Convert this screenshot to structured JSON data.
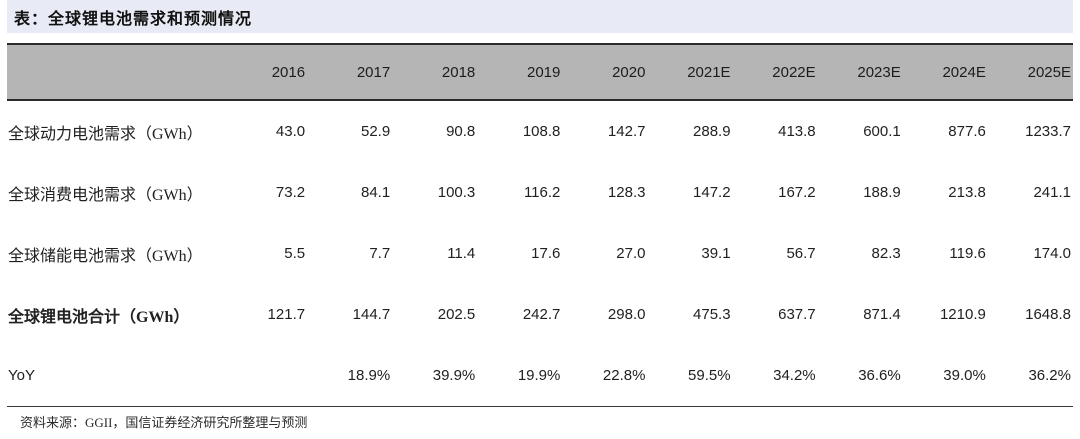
{
  "title": "表：全球锂电池需求和预测情况",
  "colors": {
    "title_bar_bg": "#e8ebf5",
    "header_row_bg": "#b5b5b5",
    "border_dark": "#2b2b2b",
    "text": "#212121"
  },
  "table": {
    "columns": [
      "",
      "2016",
      "2017",
      "2018",
      "2019",
      "2020",
      "2021E",
      "2022E",
      "2023E",
      "2024E",
      "2025E"
    ],
    "rows": [
      {
        "label": "全球动力电池需求（GWh）",
        "values": [
          "43.0",
          "52.9",
          "90.8",
          "108.8",
          "142.7",
          "288.9",
          "413.8",
          "600.1",
          "877.6",
          "1233.7"
        ]
      },
      {
        "label": "全球消费电池需求（GWh）",
        "values": [
          "73.2",
          "84.1",
          "100.3",
          "116.2",
          "128.3",
          "147.2",
          "167.2",
          "188.9",
          "213.8",
          "241.1"
        ]
      },
      {
        "label": "全球储能电池需求（GWh）",
        "values": [
          "5.5",
          "7.7",
          "11.4",
          "17.6",
          "27.0",
          "39.1",
          "56.7",
          "82.3",
          "119.6",
          "174.0"
        ]
      },
      {
        "label": "全球锂电池合计（GWh）",
        "values": [
          "121.7",
          "144.7",
          "202.5",
          "242.7",
          "298.0",
          "475.3",
          "637.7",
          "871.4",
          "1210.9",
          "1648.8"
        ]
      },
      {
        "label": "YoY",
        "values": [
          "",
          "18.9%",
          "39.9%",
          "19.9%",
          "22.8%",
          "59.5%",
          "34.2%",
          "36.6%",
          "39.0%",
          "36.2%"
        ]
      }
    ]
  },
  "source": "资料来源：GGII，国信证券经济研究所整理与预测"
}
